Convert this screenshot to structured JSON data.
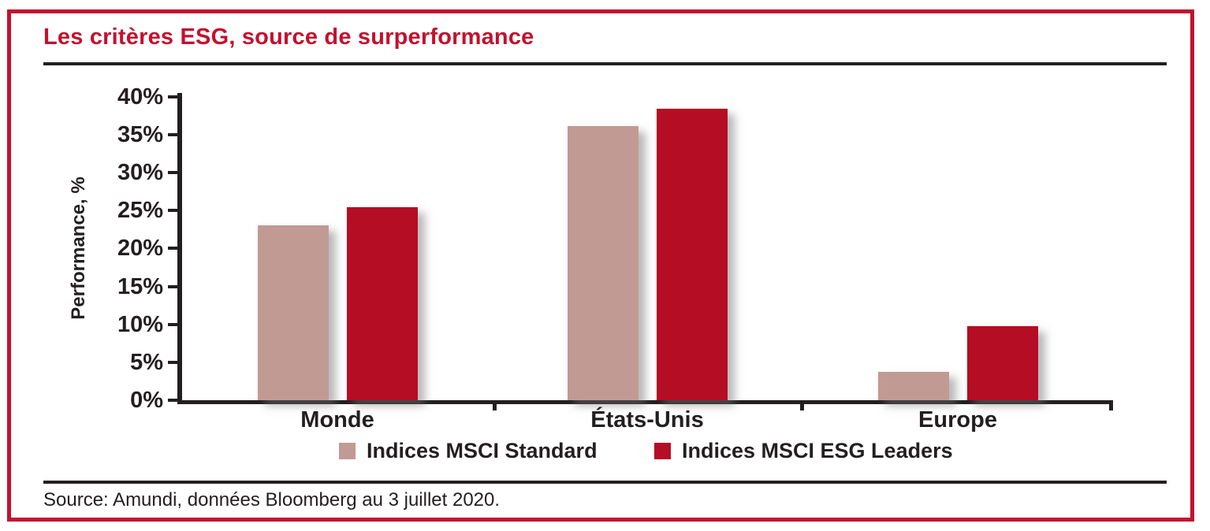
{
  "title": "Les critères ESG, source de surperformance",
  "source_note": "Source: Amundi, données Bloomberg au 3 juillet 2020.",
  "colors": {
    "brand_red": "#c3112e",
    "bar_red": "#b50d23",
    "bar_taupe": "#c29a94",
    "axis_black": "#231f20"
  },
  "chart_data": {
    "type": "bar",
    "title": "Les critères ESG, source de surperformance",
    "categories": [
      "Monde",
      "États-Unis",
      "Europe"
    ],
    "series": [
      {
        "name": "Indices MSCI Standard",
        "color": "#c29a94",
        "values": [
          23.0,
          36.1,
          3.7
        ]
      },
      {
        "name": "Indices MSCI ESG Leaders",
        "color": "#b50d23",
        "values": [
          25.4,
          38.4,
          9.8
        ]
      }
    ],
    "ylabel": "Performance, %",
    "ylim": [
      0,
      40
    ],
    "ytick_step": 5,
    "ytick_suffix": "%",
    "grid": false,
    "legend_position": "bottom"
  }
}
